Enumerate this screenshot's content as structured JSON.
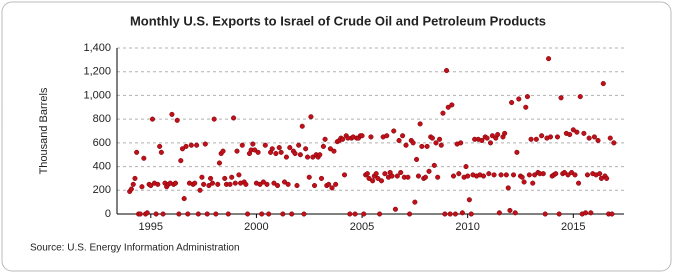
{
  "chart_data": {
    "type": "scatter",
    "title": "Monthly U.S. Exports to Israel of Crude Oil and Petroleum Products",
    "y_label": "Thousand Barrels",
    "source": "Source: U.S. Energy Information Administration",
    "color": "#c0101a",
    "grid": true,
    "xlim": [
      1993.4,
      2017.4
    ],
    "xticks": [
      1995,
      2000,
      2005,
      2010,
      2015
    ],
    "ylim": [
      0,
      1400
    ],
    "yticks": [
      0,
      200,
      400,
      600,
      800,
      {
        "value": 1000,
        "label": "1,000"
      },
      {
        "value": 1200,
        "label": "1,200"
      },
      {
        "value": 1400,
        "label": "1,400"
      }
    ],
    "x": [
      1994,
      1994.08,
      1994.17,
      1994.25,
      1994.33,
      1994.42,
      1994.5,
      1994.58,
      1994.67,
      1994.75,
      1994.83,
      1994.92,
      1995,
      1995.08,
      1995.17,
      1995.25,
      1995.33,
      1995.42,
      1995.5,
      1995.58,
      1995.67,
      1995.75,
      1995.83,
      1995.92,
      1996,
      1996.08,
      1996.17,
      1996.25,
      1996.33,
      1996.42,
      1996.5,
      1996.58,
      1996.67,
      1996.75,
      1996.83,
      1996.92,
      1997,
      1997.08,
      1997.17,
      1997.25,
      1997.33,
      1997.42,
      1997.5,
      1997.58,
      1997.67,
      1997.75,
      1997.83,
      1997.92,
      1998,
      1998.08,
      1998.17,
      1998.25,
      1998.33,
      1998.42,
      1998.5,
      1998.58,
      1998.67,
      1998.75,
      1998.83,
      1998.92,
      1999,
      1999.08,
      1999.17,
      1999.25,
      1999.33,
      1999.42,
      1999.5,
      1999.58,
      1999.67,
      1999.75,
      1999.83,
      1999.92,
      2000,
      2000.08,
      2000.17,
      2000.25,
      2000.33,
      2000.42,
      2000.5,
      2000.58,
      2000.67,
      2000.75,
      2000.83,
      2000.92,
      2001,
      2001.08,
      2001.17,
      2001.25,
      2001.33,
      2001.42,
      2001.5,
      2001.58,
      2001.67,
      2001.75,
      2001.83,
      2001.92,
      2002,
      2002.08,
      2002.17,
      2002.25,
      2002.33,
      2002.42,
      2002.5,
      2002.58,
      2002.67,
      2002.75,
      2002.83,
      2002.92,
      2003,
      2003.08,
      2003.17,
      2003.25,
      2003.33,
      2003.42,
      2003.5,
      2003.58,
      2003.67,
      2003.75,
      2003.83,
      2003.92,
      2004,
      2004.08,
      2004.17,
      2004.25,
      2004.33,
      2004.42,
      2004.5,
      2004.58,
      2004.67,
      2004.75,
      2004.83,
      2004.92,
      2005,
      2005.08,
      2005.17,
      2005.25,
      2005.33,
      2005.42,
      2005.5,
      2005.58,
      2005.67,
      2005.75,
      2005.83,
      2005.92,
      2006,
      2006.08,
      2006.17,
      2006.25,
      2006.33,
      2006.42,
      2006.5,
      2006.58,
      2006.67,
      2006.75,
      2006.83,
      2006.92,
      2007,
      2007.08,
      2007.17,
      2007.25,
      2007.33,
      2007.42,
      2007.5,
      2007.58,
      2007.67,
      2007.75,
      2007.83,
      2007.92,
      2008,
      2008.08,
      2008.17,
      2008.25,
      2008.33,
      2008.42,
      2008.5,
      2008.58,
      2008.67,
      2008.75,
      2008.83,
      2008.92,
      2009,
      2009.08,
      2009.17,
      2009.25,
      2009.33,
      2009.42,
      2009.5,
      2009.58,
      2009.67,
      2009.75,
      2009.83,
      2009.92,
      2010,
      2010.08,
      2010.17,
      2010.25,
      2010.33,
      2010.42,
      2010.5,
      2010.58,
      2010.67,
      2010.75,
      2010.83,
      2010.92,
      2011,
      2011.08,
      2011.17,
      2011.25,
      2011.33,
      2011.42,
      2011.5,
      2011.58,
      2011.67,
      2011.75,
      2011.83,
      2011.92,
      2012,
      2012.08,
      2012.17,
      2012.25,
      2012.33,
      2012.42,
      2012.5,
      2012.58,
      2012.67,
      2012.75,
      2012.83,
      2012.92,
      2013,
      2013.08,
      2013.17,
      2013.25,
      2013.33,
      2013.42,
      2013.5,
      2013.58,
      2013.67,
      2013.75,
      2013.83,
      2013.92,
      2014,
      2014.08,
      2014.17,
      2014.25,
      2014.33,
      2014.42,
      2014.5,
      2014.58,
      2014.67,
      2014.75,
      2014.83,
      2014.92,
      2015,
      2015.08,
      2015.17,
      2015.25,
      2015.33,
      2015.42,
      2015.5,
      2015.58,
      2015.67,
      2015.75,
      2015.83,
      2015.92,
      2016,
      2016.08,
      2016.17,
      2016.25,
      2016.33,
      2016.42,
      2016.5,
      2016.58,
      2016.67,
      2016.75,
      2016.83,
      2016.92
    ],
    "values": [
      190,
      210,
      250,
      300,
      520,
      0,
      0,
      230,
      470,
      0,
      10,
      250,
      240,
      800,
      260,
      0,
      250,
      570,
      520,
      0,
      260,
      230,
      250,
      260,
      840,
      250,
      260,
      790,
      0,
      450,
      550,
      130,
      570,
      0,
      260,
      580,
      250,
      260,
      580,
      0,
      200,
      310,
      250,
      590,
      0,
      240,
      300,
      260,
      800,
      0,
      250,
      430,
      510,
      530,
      300,
      250,
      0,
      250,
      310,
      810,
      260,
      530,
      330,
      260,
      580,
      270,
      250,
      0,
      510,
      540,
      590,
      540,
      260,
      520,
      250,
      0,
      270,
      580,
      250,
      0,
      520,
      550,
      260,
      510,
      240,
      560,
      520,
      0,
      270,
      480,
      250,
      560,
      0,
      530,
      510,
      240,
      580,
      500,
      740,
      0,
      550,
      480,
      310,
      820,
      480,
      240,
      500,
      480,
      500,
      300,
      570,
      630,
      240,
      250,
      550,
      220,
      530,
      250,
      610,
      620,
      640,
      630,
      330,
      660,
      640,
      0,
      640,
      650,
      0,
      640,
      640,
      660,
      660,
      0,
      330,
      340,
      300,
      650,
      280,
      320,
      340,
      300,
      0,
      280,
      650,
      340,
      660,
      310,
      350,
      320,
      700,
      40,
      320,
      620,
      350,
      660,
      310,
      580,
      310,
      0,
      620,
      600,
      100,
      460,
      320,
      760,
      570,
      300,
      310,
      570,
      360,
      650,
      640,
      410,
      600,
      310,
      630,
      580,
      850,
      0,
      1210,
      900,
      0,
      920,
      320,
      0,
      590,
      340,
      600,
      10,
      310,
      400,
      320,
      120,
      0,
      330,
      630,
      320,
      630,
      330,
      620,
      320,
      650,
      640,
      340,
      600,
      660,
      330,
      640,
      670,
      10,
      330,
      650,
      680,
      330,
      220,
      30,
      940,
      330,
      10,
      520,
      970,
      320,
      310,
      270,
      900,
      990,
      330,
      630,
      260,
      330,
      630,
      350,
      340,
      660,
      340,
      0,
      640,
      1310,
      650,
      320,
      330,
      340,
      650,
      0,
      980,
      340,
      350,
      680,
      330,
      670,
      350,
      710,
      330,
      690,
      260,
      990,
      0,
      680,
      10,
      330,
      640,
      10,
      340,
      650,
      330,
      620,
      340,
      300,
      1100,
      320,
      300,
      0,
      640,
      0,
      600
    ]
  }
}
